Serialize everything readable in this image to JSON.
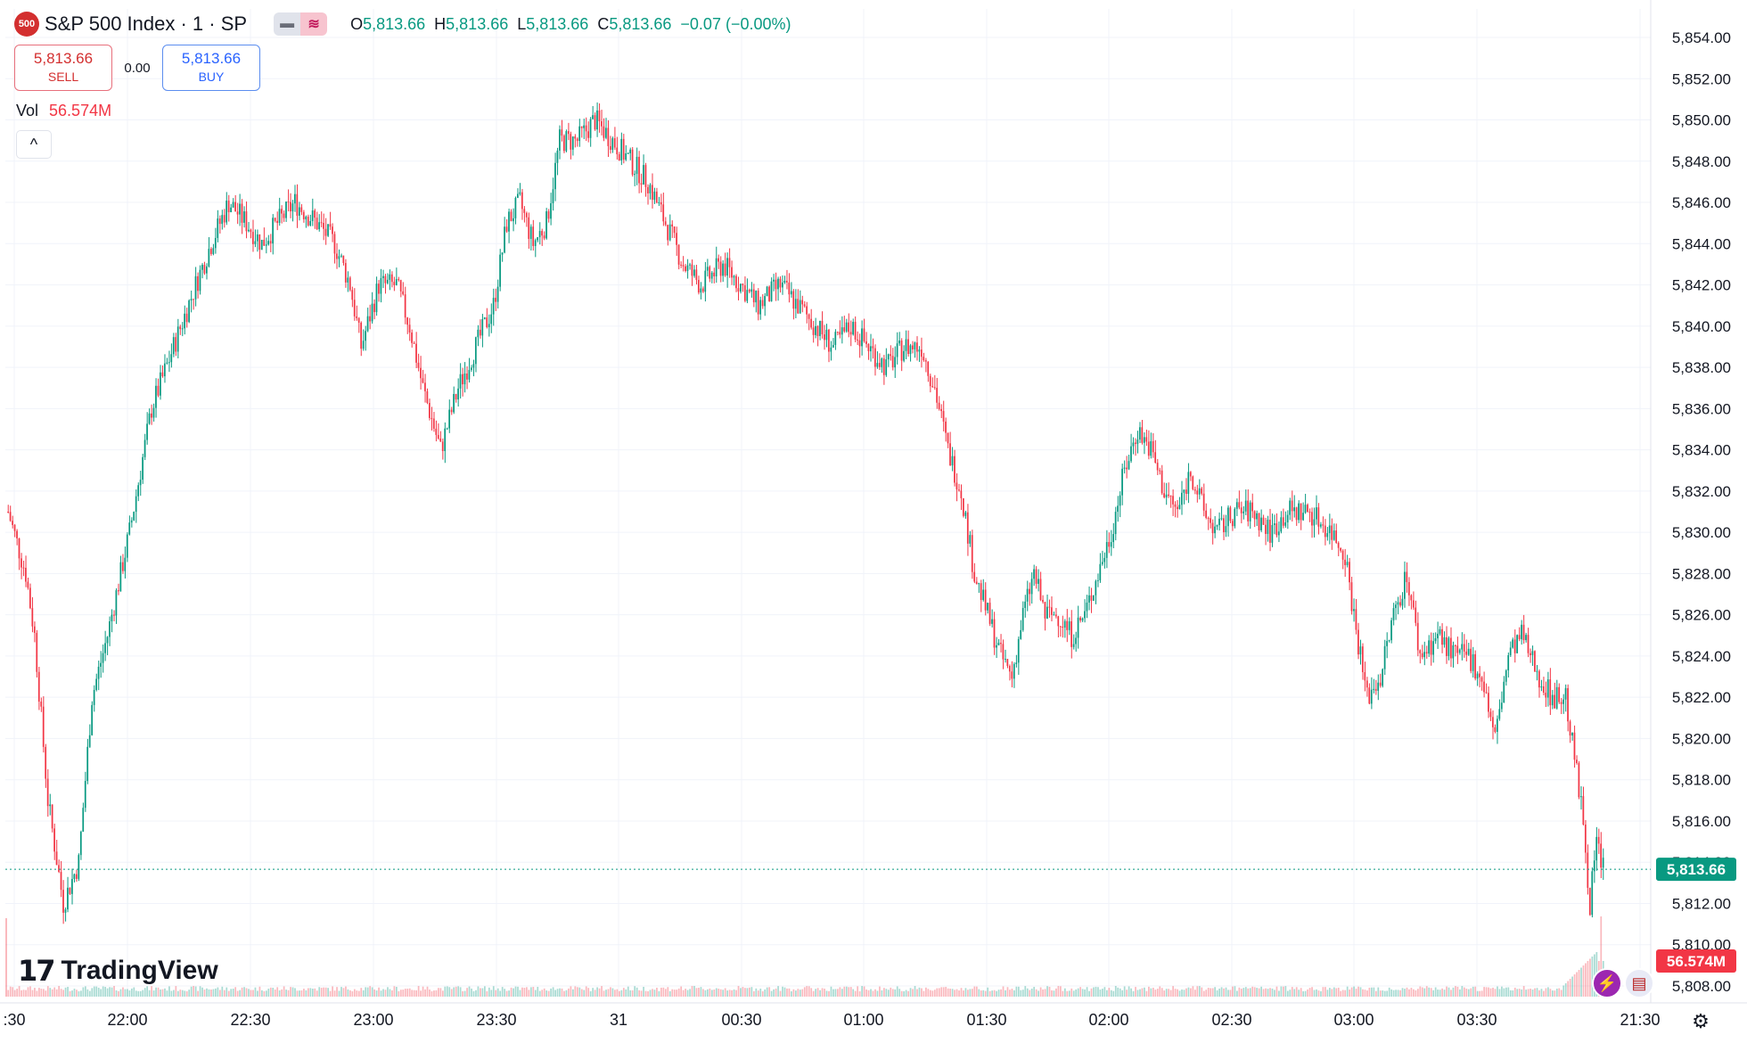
{
  "header": {
    "symbol_badge": "500",
    "title": "S&P 500 Index · 1 · SP",
    "toggle_icon_1": "minus-icon",
    "toggle_icon_2": "wave-icon",
    "ohlc": {
      "o_label": "O",
      "o": "5,813.66",
      "h_label": "H",
      "h": "5,813.66",
      "l_label": "L",
      "l": "5,813.66",
      "c_label": "C",
      "c": "5,813.66",
      "change": "−0.07 (−0.00%)"
    }
  },
  "trade": {
    "sell_price": "5,813.66",
    "sell_label": "SELL",
    "spread": "0.00",
    "buy_price": "5,813.66",
    "buy_label": "BUY"
  },
  "volume": {
    "label": "Vol",
    "value": "56.574M"
  },
  "collapse_label": "^",
  "logo_text": "TradingView",
  "colors": {
    "up": "#089981",
    "down": "#f23645",
    "grid": "#f0f3fa",
    "text": "#131722"
  },
  "chart_data": {
    "type": "candlestick",
    "interval": "1 minute",
    "y_range": [
      5807,
      5855
    ],
    "y_ticks": [
      "5,808.00",
      "5,810.00",
      "5,812.00",
      "5,814.00",
      "5,816.00",
      "5,818.00",
      "5,820.00",
      "5,822.00",
      "5,824.00",
      "5,826.00",
      "5,828.00",
      "5,830.00",
      "5,832.00",
      "5,834.00",
      "5,836.00",
      "5,838.00",
      "5,840.00",
      "5,842.00",
      "5,844.00",
      "5,846.00",
      "5,848.00",
      "5,850.00",
      "5,852.00",
      "5,854.00"
    ],
    "x_ticks": [
      ":30",
      "22:00",
      "22:30",
      "23:00",
      "23:30",
      "31",
      "00:30",
      "01:00",
      "01:30",
      "02:00",
      "02:30",
      "03:00",
      "03:30",
      "21:30"
    ],
    "last_price_label": "5,813.66",
    "last_price": 5813.66,
    "last_volume_label": "56.574M",
    "path": [
      [
        0,
        5831
      ],
      [
        8,
        5828
      ],
      [
        12,
        5825
      ],
      [
        18,
        5817
      ],
      [
        25,
        5812
      ],
      [
        32,
        5814
      ],
      [
        38,
        5822
      ],
      [
        45,
        5825
      ],
      [
        55,
        5830
      ],
      [
        65,
        5836
      ],
      [
        75,
        5839
      ],
      [
        85,
        5842
      ],
      [
        92,
        5844
      ],
      [
        100,
        5846
      ],
      [
        108,
        5845
      ],
      [
        115,
        5844
      ],
      [
        122,
        5845
      ],
      [
        130,
        5846
      ],
      [
        140,
        5845
      ],
      [
        148,
        5844
      ],
      [
        155,
        5842
      ],
      [
        160,
        5839
      ],
      [
        168,
        5842
      ],
      [
        176,
        5842
      ],
      [
        182,
        5840
      ],
      [
        188,
        5837
      ],
      [
        196,
        5834
      ],
      [
        204,
        5837
      ],
      [
        212,
        5839
      ],
      [
        220,
        5841
      ],
      [
        226,
        5845
      ],
      [
        232,
        5846
      ],
      [
        238,
        5844
      ],
      [
        244,
        5845
      ],
      [
        250,
        5849
      ],
      [
        258,
        5849
      ],
      [
        266,
        5850
      ],
      [
        274,
        5849
      ],
      [
        282,
        5848
      ],
      [
        290,
        5847
      ],
      [
        298,
        5845
      ],
      [
        306,
        5843
      ],
      [
        314,
        5842
      ],
      [
        324,
        5843
      ],
      [
        332,
        5842
      ],
      [
        340,
        5841
      ],
      [
        350,
        5842
      ],
      [
        358,
        5841
      ],
      [
        366,
        5840
      ],
      [
        374,
        5839
      ],
      [
        382,
        5840
      ],
      [
        390,
        5839
      ],
      [
        398,
        5838
      ],
      [
        406,
        5839
      ],
      [
        414,
        5839
      ],
      [
        420,
        5837
      ],
      [
        426,
        5834
      ],
      [
        432,
        5832
      ],
      [
        438,
        5828
      ],
      [
        444,
        5826
      ],
      [
        450,
        5824
      ],
      [
        455,
        5823
      ],
      [
        460,
        5826
      ],
      [
        465,
        5828
      ],
      [
        470,
        5826
      ],
      [
        476,
        5826
      ],
      [
        482,
        5825
      ],
      [
        488,
        5826
      ],
      [
        494,
        5828
      ],
      [
        500,
        5830
      ],
      [
        506,
        5833
      ],
      [
        512,
        5835
      ],
      [
        518,
        5834
      ],
      [
        524,
        5832
      ],
      [
        530,
        5831
      ],
      [
        536,
        5833
      ],
      [
        542,
        5831
      ],
      [
        548,
        5830
      ],
      [
        556,
        5831
      ],
      [
        564,
        5831
      ],
      [
        572,
        5830
      ],
      [
        580,
        5831
      ],
      [
        590,
        5831
      ],
      [
        600,
        5830
      ],
      [
        606,
        5829
      ],
      [
        610,
        5826
      ],
      [
        616,
        5822
      ],
      [
        622,
        5823
      ],
      [
        628,
        5826
      ],
      [
        634,
        5828
      ],
      [
        640,
        5824
      ],
      [
        648,
        5825
      ],
      [
        656,
        5824
      ],
      [
        662,
        5824
      ],
      [
        668,
        5823
      ],
      [
        674,
        5820
      ],
      [
        680,
        5824
      ],
      [
        686,
        5825
      ],
      [
        694,
        5823
      ],
      [
        700,
        5822
      ],
      [
        706,
        5822
      ],
      [
        710,
        5819
      ],
      [
        714,
        5816
      ],
      [
        717,
        5812
      ],
      [
        720,
        5815
      ],
      [
        723,
        5813.66
      ]
    ],
    "notes": "1-minute candles from approx 21:30 to 04:05; tall final candle ~5819 high / ~5812 low; volume spikes at end."
  }
}
